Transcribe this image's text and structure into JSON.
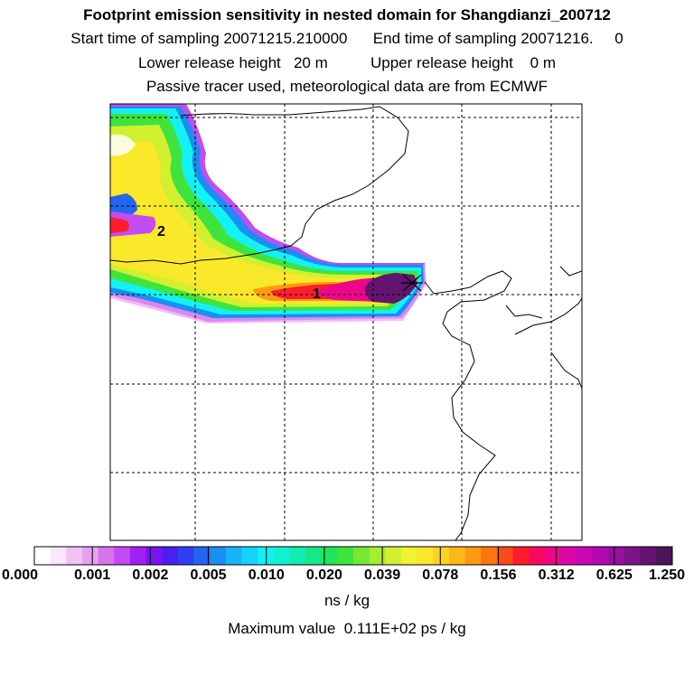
{
  "header": {
    "title": "Footprint emission sensitivity in nested domain for Shangdianzi_200712",
    "sampling_line": "Start time of sampling 20071215.210000      End time of sampling 20071216.     0",
    "release_line": "Lower release height   20 m          Upper release height    0 m",
    "tracer_line": "Passive tracer used, meteorological data are from ECMWF"
  },
  "colors": {
    "scale": [
      "#ffffff",
      "#fce6fc",
      "#f2c2f2",
      "#e9a0f0",
      "#d873ee",
      "#c24cf2",
      "#a21ff5",
      "#7a12f5",
      "#4a20f0",
      "#2e3ff0",
      "#2266ee",
      "#1a8ef2",
      "#18b4f6",
      "#14d4fa",
      "#12f2f4",
      "#12f0d2",
      "#12ecae",
      "#16e888",
      "#22e45c",
      "#3ee43c",
      "#76e834",
      "#a6ec32",
      "#d2f030",
      "#f0f232",
      "#fae82a",
      "#fcd220",
      "#fcb818",
      "#fc9a12",
      "#fc7610",
      "#fc4a14",
      "#fc1e2c",
      "#f80a60",
      "#ec068c",
      "#dc06a8",
      "#c808b4",
      "#b00ab0",
      "#96109e",
      "#7a1488",
      "#621470",
      "#48145a"
    ],
    "frame": "#000000",
    "grid": "#000000"
  },
  "colorbar": {
    "labels": [
      "0.000",
      "0.001",
      "0.002",
      "0.005",
      "0.010",
      "0.020",
      "0.039",
      "0.078",
      "0.156",
      "0.312",
      "0.625",
      "1.250"
    ],
    "units": "ns / kg"
  },
  "footer": {
    "max_value": "Maximum value  0.111E+02 ps / kg"
  },
  "chart_data": {
    "type": "heatmap",
    "title": "Footprint emission sensitivity in nested domain for Shangdianzi_200712",
    "colorbar_units": "ns / kg",
    "colorbar_ticks": [
      0.0,
      0.001,
      0.002,
      0.005,
      0.01,
      0.02,
      0.039,
      0.078,
      0.156,
      0.312,
      0.625,
      1.25
    ],
    "maximum_value_ps_per_kg": 11.1,
    "grid_columns": 5,
    "grid_rows": 5,
    "annotations": [
      {
        "label": "1",
        "note": "plume maximum region"
      },
      {
        "label": "2",
        "note": "secondary plume region"
      }
    ],
    "receptor": "Shangdianzi (star marker)"
  }
}
